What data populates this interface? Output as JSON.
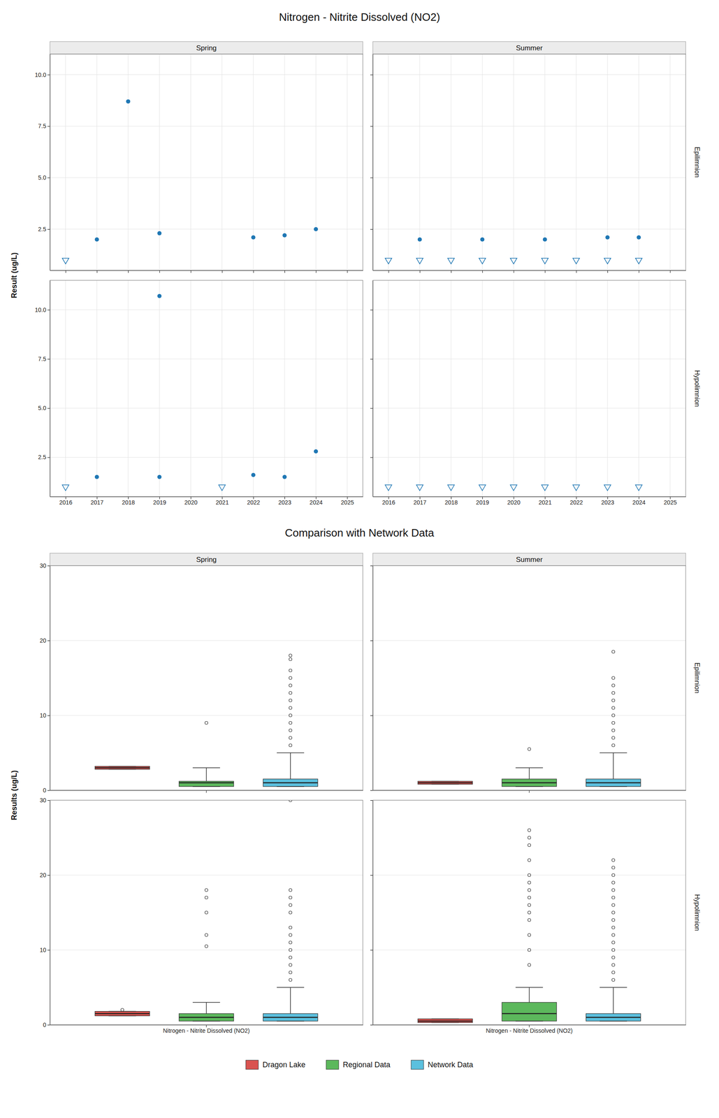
{
  "chart_data": [
    {
      "type": "scatter",
      "title": "Nitrogen - Nitrite Dissolved (NO2)",
      "ylabel": "Result (ug/L)",
      "xlim": [
        2015.5,
        2025.5
      ],
      "xticks": [
        2016,
        2017,
        2018,
        2019,
        2020,
        2021,
        2022,
        2023,
        2024,
        2025
      ],
      "grid": true,
      "panels": [
        {
          "title": "Spring",
          "tick_labels": "y",
          "ylim": [
            0.5,
            11.0
          ],
          "yticks": [
            2.5,
            {
              "value": 5.0,
              "label": "5.0"
            },
            7.5,
            {
              "value": 10.0,
              "label": "10.0"
            }
          ],
          "series": [
            {
              "marker": "circle",
              "x": [
                2016,
                2017,
                2018,
                2019,
                2020,
                2021,
                2022,
                2023,
                2024,
                2025
              ],
              "values": [
                null,
                2.0,
                8.7,
                2.3,
                null,
                null,
                2.1,
                2.2,
                2.5,
                null
              ]
            },
            {
              "marker": "triangle-down",
              "x": [
                2016
              ],
              "values": [
                1.0
              ]
            }
          ]
        },
        {
          "title": "Summer",
          "row_label": "Epilimnion",
          "tick_labels": false,
          "ylim": [
            0.5,
            11.0
          ],
          "yticks": [
            2.5,
            {
              "value": 5.0,
              "label": "5.0"
            },
            7.5,
            {
              "value": 10.0,
              "label": "10.0"
            }
          ],
          "series": [
            {
              "marker": "circle",
              "x": [
                2017,
                2019,
                2021,
                2023,
                2024
              ],
              "values": [
                2.0,
                2.0,
                2.0,
                2.1,
                2.1
              ]
            },
            {
              "marker": "triangle-down",
              "x": [
                2016,
                2017,
                2018,
                2019,
                2020,
                2021,
                2022,
                2023,
                2024
              ],
              "values": [
                1.0,
                1.0,
                1.0,
                1.0,
                1.0,
                1.0,
                1.0,
                1.0,
                1.0
              ]
            }
          ]
        },
        {
          "ylim": [
            0.5,
            11.5
          ],
          "yticks": [
            2.5,
            {
              "value": 5.0,
              "label": "5.0"
            },
            7.5,
            {
              "value": 10.0,
              "label": "10.0"
            }
          ],
          "series": [
            {
              "marker": "circle",
              "x": [
                2017,
                2019,
                2022,
                2023,
                2024
              ],
              "values": [
                1.5,
                1.5,
                1.6,
                1.5,
                2.8
              ]
            },
            {
              "marker": "circle",
              "x": [
                2019
              ],
              "values": [
                10.7
              ]
            },
            {
              "marker": "triangle-down",
              "x": [
                2016,
                2021
              ],
              "values": [
                1.0,
                1.0
              ]
            }
          ]
        },
        {
          "row_label": "Hypolimnion",
          "tick_labels": "x",
          "ylim": [
            0.5,
            11.5
          ],
          "yticks": [
            2.5,
            {
              "value": 5.0,
              "label": "5.0"
            },
            7.5,
            {
              "value": 10.0,
              "label": "10.0"
            }
          ],
          "series": [
            {
              "marker": "triangle-down",
              "x": [
                2016,
                2017,
                2018,
                2019,
                2020,
                2021,
                2022,
                2023,
                2024
              ],
              "values": [
                1.0,
                1.0,
                1.0,
                1.0,
                1.0,
                1.0,
                1.0,
                1.0,
                1.0
              ]
            }
          ]
        }
      ]
    },
    {
      "type": "box",
      "title": "Comparison with Network Data",
      "ylabel": "Results (ug/L)",
      "legend": "bottom",
      "grid": true,
      "series": [
        {
          "name": "Dragon Lake",
          "color": "#d9534f"
        },
        {
          "name": "Regional Data",
          "color": "#5cb85c"
        },
        {
          "name": "Network Data",
          "color": "#5bc0de"
        }
      ],
      "panels": [
        {
          "title": "Spring",
          "tick_labels": "y",
          "categories": [
            null
          ],
          "ylim": [
            0,
            30
          ],
          "yticks": [
            0,
            10,
            20,
            30
          ],
          "boxes": [
            {
              "median": 3.0,
              "q1": 2.8,
              "q3": 3.2,
              "whislo": 2.8,
              "whishi": 3.2,
              "fliers": []
            },
            {
              "median": 1.0,
              "q1": 0.5,
              "q3": 1.2,
              "whislo": 0.5,
              "whishi": 3.0,
              "fliers": [
                9.0
              ]
            },
            {
              "median": 1.0,
              "q1": 0.5,
              "q3": 1.5,
              "whislo": 0.5,
              "whishi": 5.0,
              "fliers": [
                6.0,
                7.0,
                8.0,
                9.0,
                10.0,
                11.0,
                12.0,
                13.0,
                14.0,
                15.0,
                16.0,
                17.5,
                18.0
              ]
            }
          ]
        },
        {
          "title": "Summer",
          "row_label": "Epilimnion",
          "tick_labels": false,
          "categories": [
            null
          ],
          "ylim": [
            0,
            30
          ],
          "yticks": [
            0,
            10,
            20,
            30
          ],
          "boxes": [
            {
              "median": 1.0,
              "q1": 0.8,
              "q3": 1.2,
              "whislo": 0.8,
              "whishi": 1.2,
              "fliers": []
            },
            {
              "median": 1.0,
              "q1": 0.5,
              "q3": 1.5,
              "whislo": 0.5,
              "whishi": 3.0,
              "fliers": [
                5.5
              ]
            },
            {
              "median": 1.0,
              "q1": 0.5,
              "q3": 1.5,
              "whislo": 0.5,
              "whishi": 5.0,
              "fliers": [
                6.0,
                7.0,
                8.0,
                9.0,
                10.0,
                11.0,
                12.0,
                13.0,
                14.0,
                15.0,
                18.5
              ]
            }
          ]
        },
        {
          "categories": [
            "Nitrogen - Nitrite Dissolved (NO2)"
          ],
          "ylim": [
            0,
            30
          ],
          "yticks": [
            0,
            10,
            20,
            30
          ],
          "boxes": [
            {
              "median": 1.5,
              "q1": 1.2,
              "q3": 1.8,
              "whislo": 1.2,
              "whishi": 1.8,
              "fliers": [
                2.0
              ]
            },
            {
              "median": 1.0,
              "q1": 0.5,
              "q3": 1.5,
              "whislo": 0.5,
              "whishi": 3.0,
              "fliers": [
                10.5,
                12.0,
                15.0,
                17.0,
                18.0
              ]
            },
            {
              "median": 1.0,
              "q1": 0.5,
              "q3": 1.5,
              "whislo": 0.5,
              "whishi": 5.0,
              "fliers": [
                6.0,
                7.0,
                8.0,
                9.0,
                10.0,
                11.0,
                12.0,
                13.0,
                15.0,
                16.0,
                17.0,
                18.0,
                30.0
              ]
            }
          ]
        },
        {
          "row_label": "Hypolimnion",
          "tick_labels": "x",
          "categories": [
            "Nitrogen - Nitrite Dissolved (NO2)"
          ],
          "ylim": [
            0,
            30
          ],
          "yticks": [
            0,
            10,
            20,
            30
          ],
          "boxes": [
            {
              "median": 0.5,
              "q1": 0.3,
              "q3": 0.8,
              "whislo": 0.3,
              "whishi": 0.8,
              "fliers": []
            },
            {
              "median": 1.5,
              "q1": 0.5,
              "q3": 3.0,
              "whislo": 0.5,
              "whishi": 5.0,
              "fliers": [
                8.0,
                10.0,
                12.0,
                14.0,
                15.0,
                16.0,
                17.0,
                18.0,
                19.0,
                20.0,
                22.0,
                24.0,
                25.0,
                26.0
              ]
            },
            {
              "median": 1.0,
              "q1": 0.5,
              "q3": 1.5,
              "whislo": 0.5,
              "whishi": 5.0,
              "fliers": [
                6.0,
                7.0,
                8.0,
                9.0,
                10.0,
                11.0,
                12.0,
                13.0,
                14.0,
                15.0,
                16.0,
                17.0,
                18.0,
                19.0,
                20.0,
                21.0,
                22.0
              ]
            }
          ]
        }
      ]
    }
  ]
}
